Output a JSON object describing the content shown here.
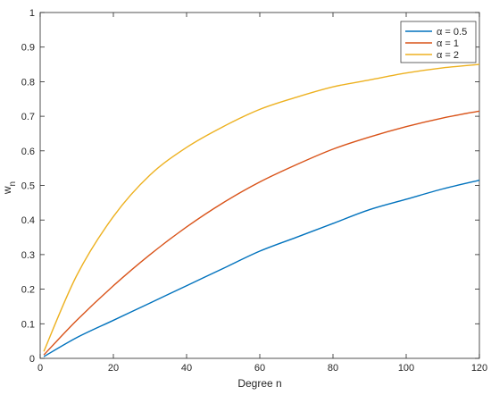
{
  "chart_data": {
    "type": "line",
    "xlabel": "Degree n",
    "ylabel": {
      "main": "w",
      "sub": "n"
    },
    "xlim": [
      0,
      120
    ],
    "ylim": [
      0,
      1
    ],
    "xticks": [
      0,
      20,
      40,
      60,
      80,
      100,
      120
    ],
    "yticks": [
      0,
      0.1,
      0.2,
      0.3,
      0.4,
      0.5,
      0.6,
      0.7,
      0.8,
      0.9,
      1
    ],
    "grid": false,
    "legend_position": "top-right",
    "series": [
      {
        "name": "α = 0.5",
        "color": "#0072BD",
        "x": [
          1,
          10,
          20,
          30,
          40,
          50,
          60,
          70,
          80,
          90,
          100,
          110,
          120
        ],
        "y": [
          0.005,
          0.06,
          0.11,
          0.16,
          0.21,
          0.26,
          0.31,
          0.35,
          0.39,
          0.43,
          0.46,
          0.49,
          0.515
        ]
      },
      {
        "name": "α = 1",
        "color": "#D95319",
        "x": [
          1,
          10,
          20,
          30,
          40,
          50,
          60,
          70,
          80,
          90,
          100,
          110,
          120
        ],
        "y": [
          0.01,
          0.11,
          0.21,
          0.3,
          0.38,
          0.45,
          0.51,
          0.56,
          0.605,
          0.64,
          0.67,
          0.695,
          0.715
        ]
      },
      {
        "name": "α = 2",
        "color": "#EDB120",
        "x": [
          1,
          10,
          20,
          30,
          40,
          50,
          60,
          70,
          80,
          90,
          100,
          110,
          120
        ],
        "y": [
          0.02,
          0.24,
          0.41,
          0.53,
          0.61,
          0.67,
          0.72,
          0.755,
          0.785,
          0.805,
          0.825,
          0.84,
          0.85
        ]
      }
    ]
  }
}
